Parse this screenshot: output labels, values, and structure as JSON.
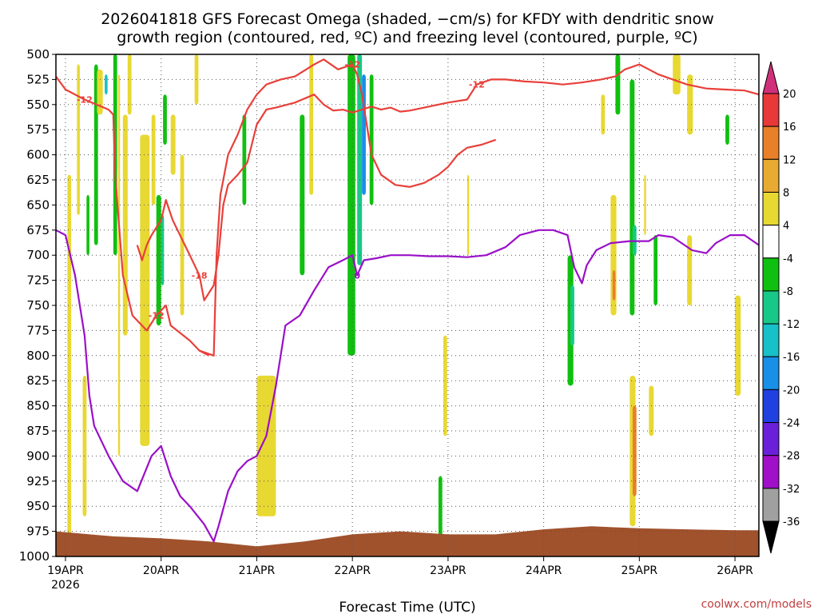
{
  "chart_data": {
    "type": "heatmap",
    "title_line1": "2026041818 GFS Forecast Omega (shaded, −cm/s) for KFDY with dendritic snow",
    "title_line2": "growth region (contoured, red, ºC) and freezing level (contoured, purple, ºC)",
    "xlabel": "Forecast Time (UTC)",
    "credit": "coolwx.com/models",
    "y_ticks": [
      500,
      525,
      550,
      575,
      600,
      625,
      650,
      675,
      700,
      725,
      750,
      775,
      800,
      825,
      850,
      875,
      900,
      925,
      950,
      975,
      1000
    ],
    "ylim": [
      1000,
      500
    ],
    "x_ticks": [
      {
        "label": "19APR",
        "sub": "2026",
        "day": 0
      },
      {
        "label": "20APR",
        "sub": "",
        "day": 1
      },
      {
        "label": "21APR",
        "sub": "",
        "day": 2
      },
      {
        "label": "22APR",
        "sub": "",
        "day": 3
      },
      {
        "label": "23APR",
        "sub": "",
        "day": 4
      },
      {
        "label": "24APR",
        "sub": "",
        "day": 5
      },
      {
        "label": "25APR",
        "sub": "",
        "day": 6
      },
      {
        "label": "26APR",
        "sub": "",
        "day": 7
      }
    ],
    "xlim": [
      -0.1,
      7.25
    ],
    "grid": true,
    "colorbar": {
      "labels": [
        20,
        16,
        12,
        8,
        4,
        -4,
        -8,
        -12,
        -16,
        -20,
        -24,
        -28,
        -32,
        -36
      ],
      "colors": [
        "#d0307a",
        "#e83838",
        "#e8802a",
        "#e8aa30",
        "#e8d832",
        "#ffffff",
        "#10c010",
        "#18c888",
        "#18c0c8",
        "#1890e8",
        "#2040e0",
        "#6a20d8",
        "#a010c8",
        "#a0a0a0",
        "#000000"
      ]
    },
    "red_contours": [
      {
        "label": "-12",
        "points": [
          [
            -0.1,
            522
          ],
          [
            0,
            535
          ],
          [
            0.2,
            545
          ],
          [
            0.45,
            555
          ],
          [
            0.5,
            560
          ]
        ]
      },
      {
        "label": "-12",
        "points": [
          [
            0.5,
            560
          ],
          [
            0.52,
            620
          ],
          [
            0.6,
            720
          ],
          [
            0.7,
            760
          ],
          [
            0.85,
            775
          ],
          [
            0.95,
            760
          ],
          [
            1.05,
            750
          ],
          [
            1.1,
            770
          ],
          [
            1.3,
            785
          ],
          [
            1.4,
            795
          ],
          [
            1.5,
            800
          ]
        ]
      },
      {
        "label": "-18",
        "points": [
          [
            0.75,
            690
          ],
          [
            0.8,
            705
          ],
          [
            0.85,
            690
          ],
          [
            0.9,
            680
          ],
          [
            1,
            665
          ],
          [
            1.05,
            645
          ],
          [
            1.12,
            665
          ],
          [
            1.3,
            700
          ],
          [
            1.4,
            720
          ],
          [
            1.45,
            745
          ],
          [
            1.55,
            730
          ],
          [
            1.6,
            700
          ],
          [
            1.65,
            650
          ],
          [
            1.7,
            630
          ],
          [
            1.8,
            620
          ],
          [
            1.9,
            608
          ]
        ]
      },
      {
        "label": "-12",
        "points": [
          [
            1.9,
            608
          ],
          [
            2.0,
            570
          ],
          [
            2.1,
            555
          ],
          [
            2.2,
            553
          ],
          [
            2.4,
            548
          ],
          [
            2.6,
            540
          ],
          [
            2.7,
            550
          ],
          [
            2.8,
            556
          ],
          [
            2.9,
            555
          ],
          [
            3.0,
            558
          ],
          [
            3.1,
            555
          ],
          [
            3.2,
            552
          ],
          [
            3.3,
            555
          ],
          [
            3.4,
            553
          ],
          [
            3.5,
            557
          ],
          [
            3.6,
            556
          ],
          [
            3.75,
            553
          ],
          [
            4.0,
            548
          ],
          [
            4.2,
            545
          ],
          [
            4.3,
            530
          ],
          [
            4.45,
            525
          ],
          [
            4.6,
            525
          ],
          [
            4.8,
            527
          ],
          [
            5.0,
            528
          ],
          [
            5.2,
            530
          ],
          [
            5.4,
            528
          ],
          [
            5.6,
            525
          ],
          [
            5.75,
            522
          ],
          [
            5.85,
            515
          ],
          [
            6.0,
            510
          ],
          [
            6.1,
            515
          ],
          [
            6.2,
            520
          ],
          [
            6.35,
            525
          ],
          [
            6.5,
            530
          ],
          [
            6.7,
            534
          ],
          [
            6.9,
            535
          ],
          [
            7.1,
            536
          ],
          [
            7.25,
            540
          ]
        ]
      },
      {
        "label": "-12",
        "points": [
          [
            1.4,
            795
          ],
          [
            1.55,
            800
          ],
          [
            1.58,
            700
          ],
          [
            1.62,
            640
          ],
          [
            1.7,
            600
          ],
          [
            1.8,
            580
          ],
          [
            1.9,
            555
          ],
          [
            2.0,
            540
          ],
          [
            2.1,
            530
          ],
          [
            2.25,
            525
          ],
          [
            2.4,
            522
          ],
          [
            2.6,
            510
          ],
          [
            2.7,
            505
          ],
          [
            2.85,
            515
          ],
          [
            3.0,
            510
          ],
          [
            3.05,
            520
          ],
          [
            3.1,
            540
          ],
          [
            3.15,
            570
          ],
          [
            3.2,
            600
          ],
          [
            3.3,
            620
          ],
          [
            3.45,
            630
          ],
          [
            3.6,
            632
          ],
          [
            3.75,
            628
          ],
          [
            3.9,
            620
          ],
          [
            4.0,
            612
          ],
          [
            4.1,
            600
          ],
          [
            4.2,
            593
          ],
          [
            4.35,
            590
          ],
          [
            4.5,
            585
          ]
        ]
      }
    ],
    "purple_contours": [
      {
        "label": "0",
        "points": [
          [
            -0.1,
            675
          ],
          [
            0,
            680
          ],
          [
            0.1,
            720
          ],
          [
            0.2,
            780
          ],
          [
            0.25,
            840
          ],
          [
            0.3,
            870
          ],
          [
            0.45,
            900
          ],
          [
            0.6,
            925
          ],
          [
            0.75,
            935
          ],
          [
            0.9,
            900
          ],
          [
            1.0,
            890
          ],
          [
            1.1,
            920
          ],
          [
            1.2,
            940
          ],
          [
            1.3,
            950
          ],
          [
            1.45,
            968
          ],
          [
            1.55,
            985
          ],
          [
            1.6,
            970
          ],
          [
            1.7,
            935
          ],
          [
            1.8,
            915
          ],
          [
            1.9,
            905
          ],
          [
            2.0,
            900
          ],
          [
            2.1,
            880
          ],
          [
            2.2,
            830
          ],
          [
            2.3,
            770
          ],
          [
            2.45,
            760
          ],
          [
            2.6,
            735
          ],
          [
            2.75,
            712
          ],
          [
            2.9,
            705
          ],
          [
            3.0,
            700
          ],
          [
            3.05,
            720
          ],
          [
            3.12,
            705
          ],
          [
            3.25,
            703
          ],
          [
            3.4,
            700
          ],
          [
            3.6,
            700
          ],
          [
            3.8,
            701
          ],
          [
            4.0,
            701
          ],
          [
            4.2,
            702
          ],
          [
            4.4,
            700
          ],
          [
            4.6,
            692
          ],
          [
            4.75,
            680
          ],
          [
            4.95,
            675
          ],
          [
            5.1,
            675
          ],
          [
            5.25,
            680
          ],
          [
            5.32,
            712
          ],
          [
            5.4,
            728
          ],
          [
            5.45,
            710
          ],
          [
            5.55,
            695
          ],
          [
            5.7,
            688
          ],
          [
            5.9,
            686
          ],
          [
            6.1,
            686
          ],
          [
            6.2,
            680
          ],
          [
            6.35,
            682
          ],
          [
            6.55,
            695
          ],
          [
            6.7,
            698
          ],
          [
            6.8,
            688
          ],
          [
            6.95,
            680
          ],
          [
            7.1,
            680
          ],
          [
            7.25,
            690
          ]
        ]
      }
    ],
    "terrain_note": "surface",
    "shaded_regions_count": 28
  }
}
